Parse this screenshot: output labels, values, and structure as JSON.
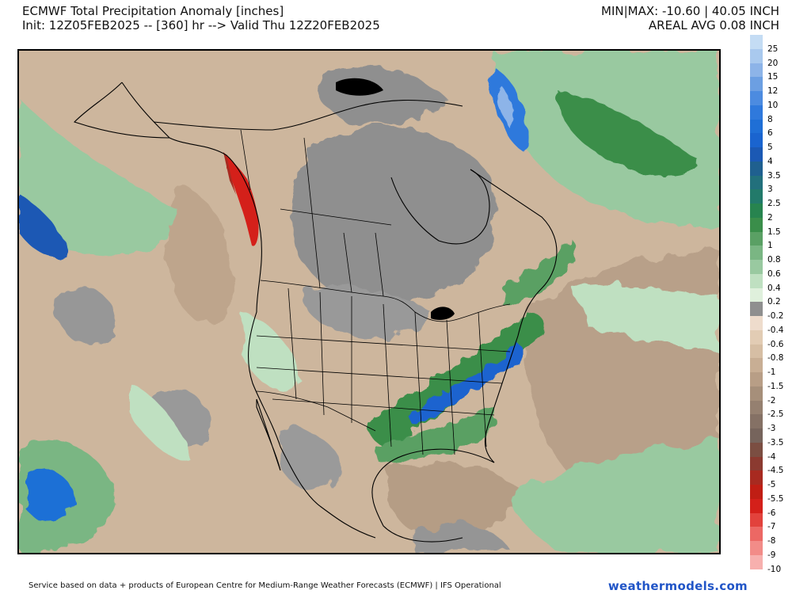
{
  "header": {
    "title": "ECMWF Total Precipitation Anomaly [inches]",
    "subtitle": "Init: 12Z05FEB2025 -- [360] hr --> Valid Thu 12Z20FEB2025",
    "minmax": "MIN|MAX: -10.60 | 40.05 INCH",
    "areal_avg": "AREAL AVG 0.08 INCH"
  },
  "legend": {
    "levels": [
      {
        "label": "25",
        "color": "#c4dcf4"
      },
      {
        "label": "20",
        "color": "#a9c9ee"
      },
      {
        "label": "15",
        "color": "#8db4e8"
      },
      {
        "label": "12",
        "color": "#6c9fe2"
      },
      {
        "label": "10",
        "color": "#4c8be0"
      },
      {
        "label": "8",
        "color": "#2f79dc"
      },
      {
        "label": "6",
        "color": "#1f6fd6"
      },
      {
        "label": "5",
        "color": "#1a64cf"
      },
      {
        "label": "4",
        "color": "#1b59b4"
      },
      {
        "label": "3.5",
        "color": "#1f608f"
      },
      {
        "label": "3",
        "color": "#22707c"
      },
      {
        "label": "2.5",
        "color": "#227a6a"
      },
      {
        "label": "2",
        "color": "#27844f"
      },
      {
        "label": "1.5",
        "color": "#3a8e4a"
      },
      {
        "label": "1",
        "color": "#5aa064"
      },
      {
        "label": "0.8",
        "color": "#7ab683"
      },
      {
        "label": "0.6",
        "color": "#99c9a0"
      },
      {
        "label": "0.4",
        "color": "#bfe0c1"
      },
      {
        "label": "0.2",
        "color": "#dff0dc"
      },
      {
        "label": "-0.2",
        "color": "#8f8f8f"
      },
      {
        "label": "-0.4",
        "color": "#eedccc"
      },
      {
        "label": "-0.6",
        "color": "#e2ccb4"
      },
      {
        "label": "-0.8",
        "color": "#d6bea4"
      },
      {
        "label": "-1",
        "color": "#c8ae94"
      },
      {
        "label": "-1.5",
        "color": "#b89e86"
      },
      {
        "label": "-2",
        "color": "#a68f7a"
      },
      {
        "label": "-2.5",
        "color": "#958070"
      },
      {
        "label": "-3",
        "color": "#857165"
      },
      {
        "label": "-3.5",
        "color": "#76645c"
      },
      {
        "label": "-4",
        "color": "#7b4e42"
      },
      {
        "label": "-4.5",
        "color": "#8b3a30"
      },
      {
        "label": "-5",
        "color": "#a82a20"
      },
      {
        "label": "-5.5",
        "color": "#c01e14"
      },
      {
        "label": "-6",
        "color": "#d4201a"
      },
      {
        "label": "-7",
        "color": "#e2423c"
      },
      {
        "label": "-8",
        "color": "#ec6864"
      },
      {
        "label": "-9",
        "color": "#f28c88"
      },
      {
        "label": "-10",
        "color": "#f7b0ae"
      }
    ]
  },
  "footer": {
    "credit": "Service based on data + products of European Centre for Medium-Range Weather Forecasts (ECMWF) | IFS Operational",
    "brand": "weathermodels.com"
  }
}
